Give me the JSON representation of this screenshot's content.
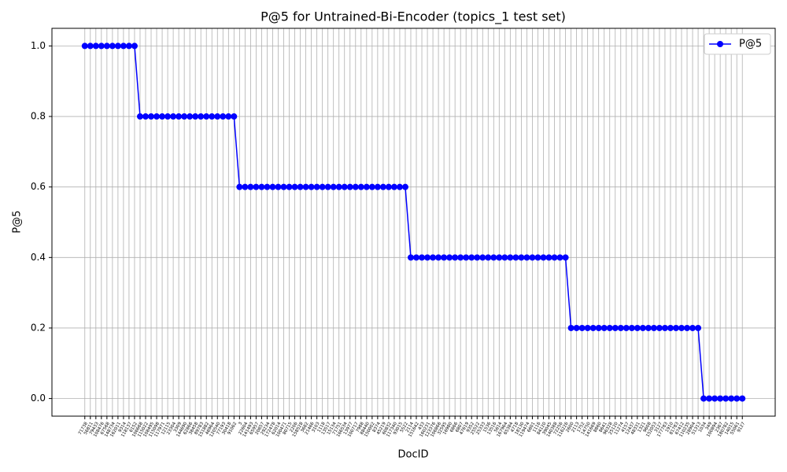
{
  "chart_data": {
    "type": "line",
    "title": "P@5 for Untrained-Bi-Encoder (topics_1 test set)",
    "x_label": "DocID",
    "y_label": "P@5",
    "categories": [
      "71738",
      "56811",
      "79433",
      "108476",
      "67568",
      "148734",
      "162011",
      "9314",
      "118137",
      "6152",
      "106668",
      "115022",
      "108495",
      "115098",
      "117971",
      "12115",
      "23304",
      "3309",
      "144690",
      "62866",
      "38458",
      "89783",
      "151882",
      "46964",
      "120540",
      "77193",
      "30418",
      "91062",
      "3",
      "22604",
      "141493",
      "65957",
      "20657",
      "29234",
      "172478",
      "62014",
      "100471",
      "80715",
      "2206",
      "158528",
      "3682",
      "21466",
      "3103",
      "1118",
      "13517",
      "15134",
      "71751",
      "166534",
      "13977",
      "100717",
      "7988",
      "88440",
      "150002",
      "8374",
      "45219",
      "60832",
      "117340",
      "93015",
      "5522",
      "2114",
      "151642",
      "433",
      "160231",
      "123376",
      "106866",
      "32595",
      "16980",
      "6866",
      "6807",
      "47619",
      "9352",
      "25522",
      "25333",
      "1536",
      "13516",
      "5614",
      "167964",
      "65384",
      "4718",
      "18130",
      "119474",
      "6601",
      "1116",
      "84120",
      "39045",
      "140388",
      "72256",
      "116226",
      "2600",
      "2113",
      "1752",
      "14750",
      "141669",
      "8860",
      "8641",
      "96328",
      "25120",
      "11274",
      "4157",
      "12437",
      "48331",
      "1321",
      "9608",
      "152053",
      "3127",
      "177783",
      "1910",
      "81783",
      "67412",
      "110235",
      "28904",
      "51313",
      "1034",
      "349",
      "100894",
      "2367",
      "180782",
      "14015",
      "55061",
      "9127"
    ],
    "series": [
      {
        "name": "P@5",
        "color": "#0000ff",
        "values": [
          1,
          1,
          1,
          1,
          1,
          1,
          1,
          1,
          1,
          1,
          0.8,
          0.8,
          0.8,
          0.8,
          0.8,
          0.8,
          0.8,
          0.8,
          0.8,
          0.8,
          0.8,
          0.8,
          0.8,
          0.8,
          0.8,
          0.8,
          0.8,
          0.8,
          0.6,
          0.6,
          0.6,
          0.6,
          0.6,
          0.6,
          0.6,
          0.6,
          0.6,
          0.6,
          0.6,
          0.6,
          0.6,
          0.6,
          0.6,
          0.6,
          0.6,
          0.6,
          0.6,
          0.6,
          0.6,
          0.6,
          0.6,
          0.6,
          0.6,
          0.6,
          0.6,
          0.6,
          0.6,
          0.6,
          0.6,
          0.4,
          0.4,
          0.4,
          0.4,
          0.4,
          0.4,
          0.4,
          0.4,
          0.4,
          0.4,
          0.4,
          0.4,
          0.4,
          0.4,
          0.4,
          0.4,
          0.4,
          0.4,
          0.4,
          0.4,
          0.4,
          0.4,
          0.4,
          0.4,
          0.4,
          0.4,
          0.4,
          0.4,
          0.4,
          0.2,
          0.2,
          0.2,
          0.2,
          0.2,
          0.2,
          0.2,
          0.2,
          0.2,
          0.2,
          0.2,
          0.2,
          0.2,
          0.2,
          0.2,
          0.2,
          0.2,
          0.2,
          0.2,
          0.2,
          0.2,
          0.2,
          0.2,
          0.2,
          0,
          0,
          0,
          0,
          0,
          0,
          0,
          0
        ]
      }
    ],
    "ylim": [
      -0.05,
      1.05
    ],
    "yticks": [
      {
        "value": 0,
        "label": "0.0"
      },
      {
        "value": 0.2,
        "label": "0.2"
      },
      {
        "value": 0.4,
        "label": "0.4"
      },
      {
        "value": 0.6,
        "label": "0.6"
      },
      {
        "value": 0.8,
        "label": "0.8"
      },
      {
        "value": 1,
        "label": "1.0"
      }
    ],
    "grid": true,
    "legend": "upper right"
  }
}
